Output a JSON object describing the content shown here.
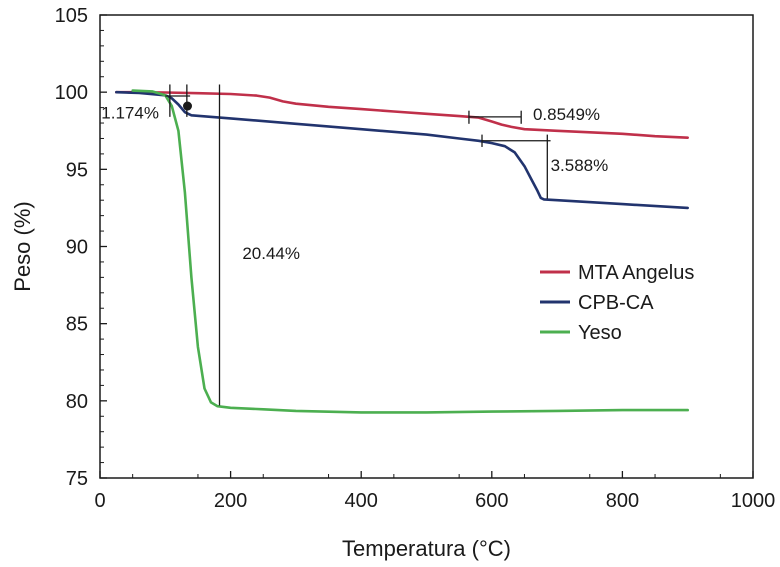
{
  "chart_data": {
    "type": "line",
    "title": "",
    "xlabel": "Temperatura (°C)",
    "ylabel": "Peso (%)",
    "xlim": [
      0,
      1000
    ],
    "ylim": [
      75,
      105
    ],
    "xticks": [
      0,
      200,
      400,
      600,
      800,
      1000
    ],
    "yticks": [
      75,
      80,
      85,
      90,
      95,
      100,
      105
    ],
    "xtick_labels": [
      "0",
      "200",
      "400",
      "600",
      "800",
      "1000"
    ],
    "ytick_labels": [
      "75",
      "80",
      "85",
      "90",
      "95",
      "100",
      "105"
    ],
    "grid": false,
    "legend_position": "center-right",
    "series": [
      {
        "name": "MTA Angelus",
        "color": "#c0304a",
        "x": [
          25,
          60,
          100,
          150,
          200,
          240,
          260,
          280,
          300,
          350,
          400,
          450,
          500,
          550,
          580,
          600,
          615,
          630,
          650,
          700,
          750,
          800,
          850,
          900
        ],
        "y": [
          100.0,
          100.0,
          99.98,
          99.93,
          99.88,
          99.78,
          99.65,
          99.4,
          99.25,
          99.05,
          98.9,
          98.75,
          98.6,
          98.45,
          98.35,
          98.1,
          97.9,
          97.75,
          97.6,
          97.5,
          97.4,
          97.3,
          97.15,
          97.05
        ]
      },
      {
        "name": "CPB-CA",
        "color": "#22346e",
        "x": [
          25,
          60,
          100,
          110,
          120,
          130,
          140,
          200,
          300,
          400,
          500,
          550,
          580,
          600,
          620,
          635,
          650,
          660,
          670,
          675,
          680,
          700,
          800,
          900
        ],
        "y": [
          100.0,
          99.95,
          99.8,
          99.6,
          99.2,
          98.7,
          98.5,
          98.3,
          97.95,
          97.6,
          97.25,
          97.0,
          96.85,
          96.7,
          96.5,
          96.1,
          95.2,
          94.4,
          93.6,
          93.15,
          93.05,
          93.0,
          92.75,
          92.5
        ]
      },
      {
        "name": "Yeso",
        "color": "#4caf50",
        "x": [
          50,
          80,
          100,
          110,
          120,
          130,
          140,
          150,
          160,
          170,
          180,
          200,
          250,
          300,
          400,
          500,
          600,
          700,
          800,
          900
        ],
        "y": [
          100.1,
          100.05,
          99.8,
          99.1,
          97.5,
          93.5,
          88.0,
          83.5,
          80.8,
          79.9,
          79.65,
          79.55,
          79.45,
          79.35,
          79.25,
          79.25,
          79.3,
          79.35,
          79.4,
          79.4
        ]
      }
    ],
    "annotations": [
      {
        "name": "yeso-loss",
        "text": "1.174%",
        "x": 2,
        "y": 98.3
      },
      {
        "name": "main-loss",
        "text": "20.44%",
        "x": 218,
        "y": 89.2
      },
      {
        "name": "mta-loss",
        "text": "0.8549%",
        "x": 663,
        "y": 98.2
      },
      {
        "name": "cpb-loss",
        "text": "3.588%",
        "x": 690,
        "y": 94.9
      }
    ],
    "marker_lines": [
      {
        "type": "v",
        "x": 107,
        "y1": 98.4,
        "y2": 100.5
      },
      {
        "type": "v",
        "x": 133,
        "y1": 98.4,
        "y2": 100.5
      },
      {
        "type": "h",
        "x1": 100,
        "x2": 138,
        "y": 99.75
      },
      {
        "type": "v",
        "x": 183,
        "y1": 79.7,
        "y2": 100.5
      },
      {
        "type": "h",
        "x1": 565,
        "x2": 645,
        "y": 98.4
      },
      {
        "type": "v",
        "x": 565,
        "y1": 97.95,
        "y2": 98.8
      },
      {
        "type": "v",
        "x": 645,
        "y1": 97.95,
        "y2": 98.8
      },
      {
        "type": "h",
        "x1": 585,
        "x2": 690,
        "y": 96.85
      },
      {
        "type": "v",
        "x": 585,
        "y1": 96.45,
        "y2": 97.25
      },
      {
        "type": "v",
        "x": 685,
        "y1": 93.1,
        "y2": 97.25
      }
    ],
    "markers": [
      {
        "type": "dot",
        "x": 134,
        "y": 99.1
      }
    ]
  }
}
